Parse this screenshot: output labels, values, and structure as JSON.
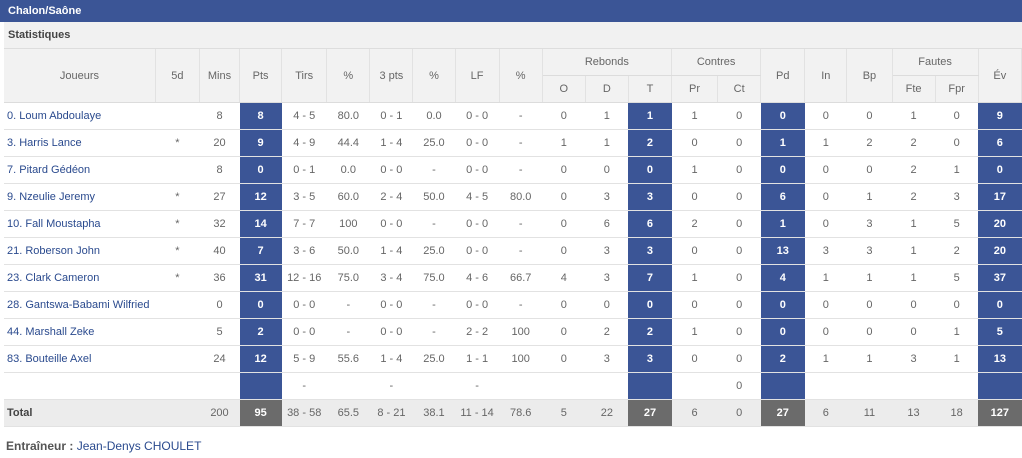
{
  "team": "Chalon/Saône",
  "section": "Statistiques",
  "headers": {
    "joueurs": "Joueurs",
    "fived": "5d",
    "mins": "Mins",
    "pts": "Pts",
    "tirs": "Tirs",
    "pct1": "%",
    "pts3": "3 pts",
    "pct2": "%",
    "lf": "LF",
    "pct3": "%",
    "rebonds": "Rebonds",
    "reb_o": "O",
    "reb_d": "D",
    "reb_t": "T",
    "contres": "Contres",
    "c_pr": "Pr",
    "c_ct": "Ct",
    "pd": "Pd",
    "in": "In",
    "bp": "Bp",
    "fautes": "Fautes",
    "f_fte": "Fte",
    "f_fpr": "Fpr",
    "ev": "Év"
  },
  "rows": [
    {
      "player": "0. Loum Abdoulaye",
      "five": "",
      "mins": "8",
      "pts": "8",
      "tirs": "4 - 5",
      "pct1": "80.0",
      "pts3": "0 - 1",
      "pct2": "0.0",
      "lf": "0 - 0",
      "pct3": "-",
      "o": "0",
      "d": "1",
      "t": "1",
      "pr": "1",
      "ct": "0",
      "pd": "0",
      "in": "0",
      "bp": "0",
      "fte": "1",
      "fpr": "0",
      "ev": "9"
    },
    {
      "player": "3. Harris Lance",
      "five": "*",
      "mins": "20",
      "pts": "9",
      "tirs": "4 - 9",
      "pct1": "44.4",
      "pts3": "1 - 4",
      "pct2": "25.0",
      "lf": "0 - 0",
      "pct3": "-",
      "o": "1",
      "d": "1",
      "t": "2",
      "pr": "0",
      "ct": "0",
      "pd": "1",
      "in": "1",
      "bp": "2",
      "fte": "2",
      "fpr": "0",
      "ev": "6"
    },
    {
      "player": "7. Pitard Gédéon",
      "five": "",
      "mins": "8",
      "pts": "0",
      "tirs": "0 - 1",
      "pct1": "0.0",
      "pts3": "0 - 0",
      "pct2": "-",
      "lf": "0 - 0",
      "pct3": "-",
      "o": "0",
      "d": "0",
      "t": "0",
      "pr": "1",
      "ct": "0",
      "pd": "0",
      "in": "0",
      "bp": "0",
      "fte": "2",
      "fpr": "1",
      "ev": "0"
    },
    {
      "player": "9. Nzeulie Jeremy",
      "five": "*",
      "mins": "27",
      "pts": "12",
      "tirs": "3 - 5",
      "pct1": "60.0",
      "pts3": "2 - 4",
      "pct2": "50.0",
      "lf": "4 - 5",
      "pct3": "80.0",
      "o": "0",
      "d": "3",
      "t": "3",
      "pr": "0",
      "ct": "0",
      "pd": "6",
      "in": "0",
      "bp": "1",
      "fte": "2",
      "fpr": "3",
      "ev": "17"
    },
    {
      "player": "10. Fall Moustapha",
      "five": "*",
      "mins": "32",
      "pts": "14",
      "tirs": "7 - 7",
      "pct1": "100",
      "pts3": "0 - 0",
      "pct2": "-",
      "lf": "0 - 0",
      "pct3": "-",
      "o": "0",
      "d": "6",
      "t": "6",
      "pr": "2",
      "ct": "0",
      "pd": "1",
      "in": "0",
      "bp": "3",
      "fte": "1",
      "fpr": "5",
      "ev": "20"
    },
    {
      "player": "21. Roberson John",
      "five": "*",
      "mins": "40",
      "pts": "7",
      "tirs": "3 - 6",
      "pct1": "50.0",
      "pts3": "1 - 4",
      "pct2": "25.0",
      "lf": "0 - 0",
      "pct3": "-",
      "o": "0",
      "d": "3",
      "t": "3",
      "pr": "0",
      "ct": "0",
      "pd": "13",
      "in": "3",
      "bp": "3",
      "fte": "1",
      "fpr": "2",
      "ev": "20"
    },
    {
      "player": "23. Clark Cameron",
      "five": "*",
      "mins": "36",
      "pts": "31",
      "tirs": "12 - 16",
      "pct1": "75.0",
      "pts3": "3 - 4",
      "pct2": "75.0",
      "lf": "4 - 6",
      "pct3": "66.7",
      "o": "4",
      "d": "3",
      "t": "7",
      "pr": "1",
      "ct": "0",
      "pd": "4",
      "in": "1",
      "bp": "1",
      "fte": "1",
      "fpr": "5",
      "ev": "37"
    },
    {
      "player": "28. Gantswa-Babami Wilfried",
      "five": "",
      "mins": "0",
      "pts": "0",
      "tirs": "0 - 0",
      "pct1": "-",
      "pts3": "0 - 0",
      "pct2": "-",
      "lf": "0 - 0",
      "pct3": "-",
      "o": "0",
      "d": "0",
      "t": "0",
      "pr": "0",
      "ct": "0",
      "pd": "0",
      "in": "0",
      "bp": "0",
      "fte": "0",
      "fpr": "0",
      "ev": "0"
    },
    {
      "player": "44. Marshall Zeke",
      "five": "",
      "mins": "5",
      "pts": "2",
      "tirs": "0 - 0",
      "pct1": "-",
      "pts3": "0 - 0",
      "pct2": "-",
      "lf": "2 - 2",
      "pct3": "100",
      "o": "0",
      "d": "2",
      "t": "2",
      "pr": "1",
      "ct": "0",
      "pd": "0",
      "in": "0",
      "bp": "0",
      "fte": "0",
      "fpr": "1",
      "ev": "5"
    },
    {
      "player": "83. Bouteille Axel",
      "five": "",
      "mins": "24",
      "pts": "12",
      "tirs": "5 - 9",
      "pct1": "55.6",
      "pts3": "1 - 4",
      "pct2": "25.0",
      "lf": "1 - 1",
      "pct3": "100",
      "o": "0",
      "d": "3",
      "t": "3",
      "pr": "0",
      "ct": "0",
      "pd": "2",
      "in": "1",
      "bp": "1",
      "fte": "3",
      "fpr": "1",
      "ev": "13"
    },
    {
      "player": "",
      "five": "",
      "mins": "",
      "pts": "",
      "tirs": "-",
      "pct1": "",
      "pts3": "-",
      "pct2": "",
      "lf": "-",
      "pct3": "",
      "o": "",
      "d": "",
      "t": "",
      "pr": "",
      "ct": "0",
      "pd": "",
      "in": "",
      "bp": "",
      "fte": "",
      "fpr": "",
      "ev": ""
    }
  ],
  "total": {
    "label": "Total",
    "mins": "200",
    "pts": "95",
    "tirs": "38 - 58",
    "pct1": "65.5",
    "pts3": "8 - 21",
    "pct2": "38.1",
    "lf": "11 - 14",
    "pct3": "78.6",
    "o": "5",
    "d": "22",
    "t": "27",
    "pr": "6",
    "ct": "0",
    "pd": "27",
    "in": "6",
    "bp": "11",
    "fte": "13",
    "fpr": "18",
    "ev": "127"
  },
  "coach": {
    "label": "Entraîneur :",
    "name": "Jean-Denys CHOULET"
  },
  "colors": {
    "accent": "#3b5596",
    "total_highlight": "#6b6b6b"
  }
}
